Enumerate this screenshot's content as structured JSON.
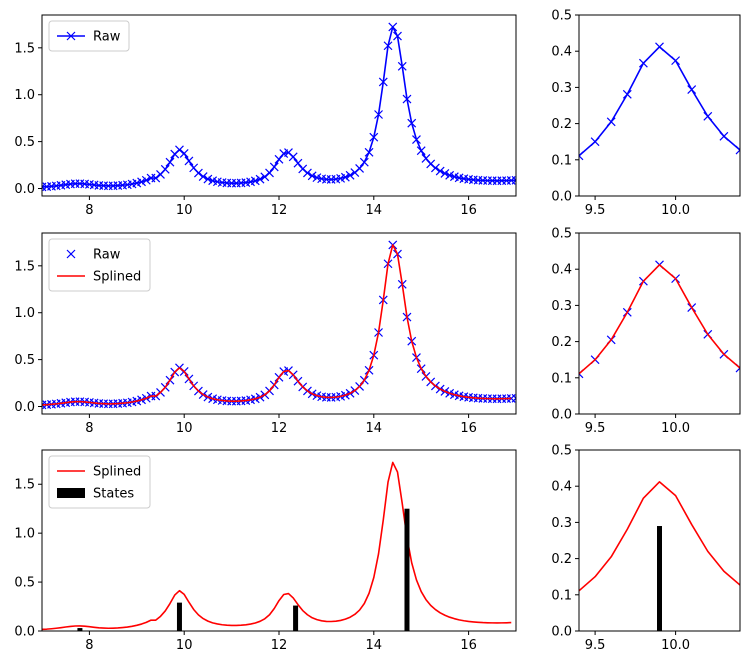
{
  "colors": {
    "raw": "#0000ff",
    "splined": "#ff0000",
    "states": "#000000"
  },
  "chart_data": [
    {
      "type": "line",
      "panel": "main-raw",
      "xlim": [
        7.0,
        17.0
      ],
      "ylim": [
        -0.08,
        1.85
      ],
      "xticks": [
        8,
        10,
        12,
        14,
        16
      ],
      "xtick_labels": [
        "8",
        "10",
        "12",
        "14",
        "16"
      ],
      "yticks": [
        0.0,
        0.5,
        1.0,
        1.5
      ],
      "ytick_labels": [
        "0.0",
        "0.5",
        "1.0",
        "1.5"
      ],
      "legend": {
        "position": "upper-left",
        "entries": [
          {
            "label": "Raw",
            "style": "line-x",
            "color": "raw"
          }
        ]
      },
      "series": [
        {
          "name": "Raw",
          "data_ref": "raw",
          "style": "line-x"
        }
      ]
    },
    {
      "type": "line",
      "panel": "zoom-raw",
      "xlim": [
        9.4,
        10.4
      ],
      "ylim": [
        0.0,
        0.5
      ],
      "xticks": [
        9.5,
        10.0
      ],
      "xtick_labels": [
        "9.5",
        "10.0"
      ],
      "yticks": [
        0.0,
        0.1,
        0.2,
        0.3,
        0.4,
        0.5
      ],
      "ytick_labels": [
        "0.0",
        "0.1",
        "0.2",
        "0.3",
        "0.4",
        "0.5"
      ],
      "series": [
        {
          "name": "Raw",
          "data_ref": "raw",
          "style": "line-x"
        }
      ]
    },
    {
      "type": "line",
      "panel": "main-splined",
      "xlim": [
        7.0,
        17.0
      ],
      "ylim": [
        -0.08,
        1.85
      ],
      "xticks": [
        8,
        10,
        12,
        14,
        16
      ],
      "xtick_labels": [
        "8",
        "10",
        "12",
        "14",
        "16"
      ],
      "yticks": [
        0.0,
        0.5,
        1.0,
        1.5
      ],
      "ytick_labels": [
        "0.0",
        "0.5",
        "1.0",
        "1.5"
      ],
      "legend": {
        "position": "upper-left",
        "entries": [
          {
            "label": "Raw",
            "style": "x",
            "color": "raw"
          },
          {
            "label": "Splined",
            "style": "line",
            "color": "splined"
          }
        ]
      },
      "series": [
        {
          "name": "Raw",
          "data_ref": "raw",
          "style": "x"
        },
        {
          "name": "Splined",
          "data_ref": "spline",
          "style": "line"
        }
      ]
    },
    {
      "type": "line",
      "panel": "zoom-splined",
      "xlim": [
        9.4,
        10.4
      ],
      "ylim": [
        0.0,
        0.5
      ],
      "xticks": [
        9.5,
        10.0
      ],
      "xtick_labels": [
        "9.5",
        "10.0"
      ],
      "yticks": [
        0.0,
        0.1,
        0.2,
        0.3,
        0.4,
        0.5
      ],
      "ytick_labels": [
        "0.0",
        "0.1",
        "0.2",
        "0.3",
        "0.4",
        "0.5"
      ],
      "series": [
        {
          "name": "Raw",
          "data_ref": "raw",
          "style": "x"
        },
        {
          "name": "Splined",
          "data_ref": "spline",
          "style": "line"
        }
      ]
    },
    {
      "type": "line",
      "panel": "main-states",
      "xlim": [
        7.0,
        17.0
      ],
      "ylim": [
        0.0,
        1.85
      ],
      "xticks": [
        8,
        10,
        12,
        14,
        16
      ],
      "xtick_labels": [
        "8",
        "10",
        "12",
        "14",
        "16"
      ],
      "yticks": [
        0.0,
        0.5,
        1.0,
        1.5
      ],
      "ytick_labels": [
        "0.0",
        "0.5",
        "1.0",
        "1.5"
      ],
      "legend": {
        "position": "upper-left",
        "entries": [
          {
            "label": "Splined",
            "style": "line",
            "color": "splined"
          },
          {
            "label": "States",
            "style": "bar",
            "color": "states"
          }
        ]
      },
      "series": [
        {
          "name": "Splined",
          "data_ref": "spline",
          "style": "line"
        },
        {
          "name": "States",
          "data_ref": "states",
          "style": "bar"
        }
      ]
    },
    {
      "type": "line",
      "panel": "zoom-states",
      "xlim": [
        9.4,
        10.4
      ],
      "ylim": [
        0.0,
        0.5
      ],
      "xticks": [
        9.5,
        10.0
      ],
      "xtick_labels": [
        "9.5",
        "10.0"
      ],
      "yticks": [
        0.0,
        0.1,
        0.2,
        0.3,
        0.4,
        0.5
      ],
      "ytick_labels": [
        "0.0",
        "0.1",
        "0.2",
        "0.3",
        "0.4",
        "0.5"
      ],
      "series": [
        {
          "name": "Splined",
          "data_ref": "spline",
          "style": "line"
        },
        {
          "name": "States",
          "data_ref": "states",
          "style": "bar"
        }
      ]
    }
  ],
  "series_data": {
    "raw": {
      "x": [
        7.0,
        7.1,
        7.2,
        7.3,
        7.4,
        7.5,
        7.6,
        7.7,
        7.8,
        7.9,
        8.0,
        8.1,
        8.2,
        8.3,
        8.4,
        8.5,
        8.6,
        8.7,
        8.8,
        8.9,
        9.0,
        9.1,
        9.2,
        9.3,
        9.4,
        9.5,
        9.6,
        9.7,
        9.8,
        9.9,
        10.0,
        10.1,
        10.2,
        10.3,
        10.4,
        10.5,
        10.6,
        10.7,
        10.8,
        10.9,
        11.0,
        11.1,
        11.2,
        11.3,
        11.4,
        11.5,
        11.6,
        11.7,
        11.8,
        11.9,
        12.0,
        12.1,
        12.2,
        12.3,
        12.4,
        12.5,
        12.6,
        12.7,
        12.8,
        12.9,
        13.0,
        13.1,
        13.2,
        13.3,
        13.4,
        13.5,
        13.6,
        13.7,
        13.8,
        13.9,
        14.0,
        14.1,
        14.2,
        14.3,
        14.4,
        14.5,
        14.6,
        14.7,
        14.8,
        14.9,
        15.0,
        15.1,
        15.2,
        15.3,
        15.4,
        15.5,
        15.6,
        15.7,
        15.8,
        15.9,
        16.0,
        16.1,
        16.2,
        16.3,
        16.4,
        16.5,
        16.6,
        16.7,
        16.8,
        16.9,
        17.0
      ],
      "y": [
        0.017,
        0.019,
        0.023,
        0.028,
        0.034,
        0.041,
        0.047,
        0.051,
        0.052,
        0.049,
        0.044,
        0.038,
        0.033,
        0.03,
        0.028,
        0.029,
        0.031,
        0.035,
        0.04,
        0.048,
        0.058,
        0.071,
        0.088,
        0.111,
        0.111,
        0.15,
        0.205,
        0.281,
        0.367,
        0.412,
        0.374,
        0.294,
        0.22,
        0.165,
        0.127,
        0.101,
        0.083,
        0.072,
        0.064,
        0.059,
        0.057,
        0.057,
        0.059,
        0.063,
        0.071,
        0.082,
        0.099,
        0.125,
        0.166,
        0.23,
        0.311,
        0.373,
        0.383,
        0.338,
        0.27,
        0.209,
        0.166,
        0.135,
        0.116,
        0.104,
        0.098,
        0.097,
        0.1,
        0.108,
        0.121,
        0.141,
        0.17,
        0.214,
        0.281,
        0.386,
        0.547,
        0.789,
        1.136,
        1.522,
        1.723,
        1.625,
        1.303,
        0.954,
        0.696,
        0.522,
        0.403,
        0.321,
        0.262,
        0.219,
        0.186,
        0.161,
        0.141,
        0.126,
        0.114,
        0.105,
        0.098,
        0.093,
        0.089,
        0.086,
        0.084,
        0.083,
        0.082,
        0.083,
        0.084,
        0.086,
        0.088
      ]
    },
    "spline": {
      "x": [
        7.0,
        7.1,
        7.2,
        7.3,
        7.4,
        7.5,
        7.6,
        7.7,
        7.8,
        7.9,
        8.0,
        8.1,
        8.2,
        8.3,
        8.4,
        8.5,
        8.6,
        8.7,
        8.8,
        8.9,
        9.0,
        9.1,
        9.2,
        9.3,
        9.4,
        9.5,
        9.6,
        9.7,
        9.8,
        9.9,
        10.0,
        10.1,
        10.2,
        10.3,
        10.4,
        10.5,
        10.6,
        10.7,
        10.8,
        10.9,
        11.0,
        11.1,
        11.2,
        11.3,
        11.4,
        11.5,
        11.6,
        11.7,
        11.8,
        11.9,
        12.0,
        12.1,
        12.2,
        12.3,
        12.4,
        12.5,
        12.6,
        12.7,
        12.8,
        12.9,
        13.0,
        13.1,
        13.2,
        13.3,
        13.4,
        13.5,
        13.6,
        13.7,
        13.8,
        13.9,
        14.0,
        14.1,
        14.2,
        14.3,
        14.4,
        14.5,
        14.6,
        14.7,
        14.8,
        14.9,
        15.0,
        15.1,
        15.2,
        15.3,
        15.4,
        15.5,
        15.6,
        15.7,
        15.8,
        15.9,
        16.0,
        16.1,
        16.2,
        16.3,
        16.4,
        16.5,
        16.6,
        16.7,
        16.8,
        16.9
      ],
      "y": [
        0.017,
        0.019,
        0.023,
        0.028,
        0.034,
        0.041,
        0.047,
        0.051,
        0.052,
        0.049,
        0.044,
        0.038,
        0.033,
        0.03,
        0.028,
        0.029,
        0.031,
        0.035,
        0.04,
        0.048,
        0.058,
        0.071,
        0.088,
        0.111,
        0.111,
        0.15,
        0.205,
        0.281,
        0.367,
        0.412,
        0.374,
        0.294,
        0.22,
        0.165,
        0.127,
        0.101,
        0.083,
        0.072,
        0.064,
        0.059,
        0.057,
        0.057,
        0.059,
        0.063,
        0.071,
        0.082,
        0.099,
        0.125,
        0.166,
        0.23,
        0.311,
        0.373,
        0.383,
        0.338,
        0.27,
        0.209,
        0.166,
        0.135,
        0.116,
        0.104,
        0.098,
        0.097,
        0.1,
        0.108,
        0.121,
        0.141,
        0.17,
        0.214,
        0.281,
        0.386,
        0.547,
        0.789,
        1.136,
        1.522,
        1.723,
        1.625,
        1.303,
        0.954,
        0.696,
        0.522,
        0.403,
        0.321,
        0.262,
        0.219,
        0.186,
        0.161,
        0.141,
        0.126,
        0.114,
        0.105,
        0.098,
        0.093,
        0.089,
        0.086,
        0.084,
        0.083,
        0.082,
        0.083,
        0.084,
        0.086
      ]
    },
    "states": {
      "x": [
        7.8,
        9.9,
        12.35,
        14.7
      ],
      "y": [
        0.03,
        0.29,
        0.26,
        1.25
      ]
    }
  }
}
